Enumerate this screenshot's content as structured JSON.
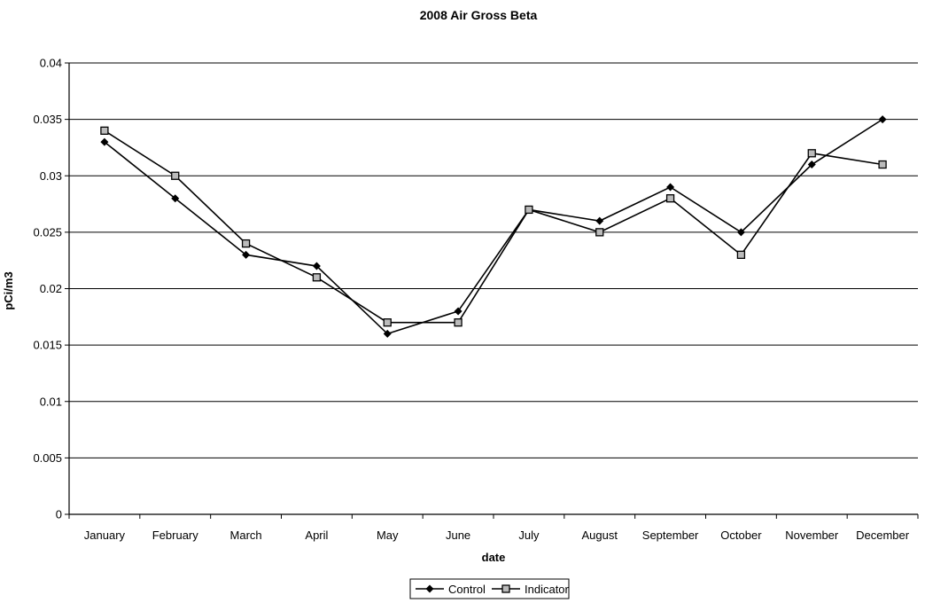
{
  "chart_data": {
    "type": "line",
    "title": "2008 Air Gross Beta",
    "xlabel": "date",
    "ylabel": "pCi/m3",
    "categories": [
      "January",
      "February",
      "March",
      "April",
      "May",
      "June",
      "July",
      "August",
      "September",
      "October",
      "November",
      "December"
    ],
    "ylim": [
      0,
      0.04
    ],
    "yticks": [
      "0",
      "0.005",
      "0.01",
      "0.015",
      "0.02",
      "0.025",
      "0.03",
      "0.035",
      "0.04"
    ],
    "grid": true,
    "legend_position": "bottom",
    "series": [
      {
        "name": "Control",
        "marker": "diamond",
        "color": "#000000",
        "values": [
          0.033,
          0.028,
          0.023,
          0.022,
          0.016,
          0.018,
          0.027,
          0.026,
          0.029,
          0.025,
          0.031,
          0.035
        ]
      },
      {
        "name": "Indicator",
        "marker": "square",
        "color": "#000000",
        "values": [
          0.034,
          0.03,
          0.024,
          0.021,
          0.017,
          0.017,
          0.027,
          0.025,
          0.028,
          0.023,
          0.032,
          0.031
        ]
      }
    ]
  }
}
